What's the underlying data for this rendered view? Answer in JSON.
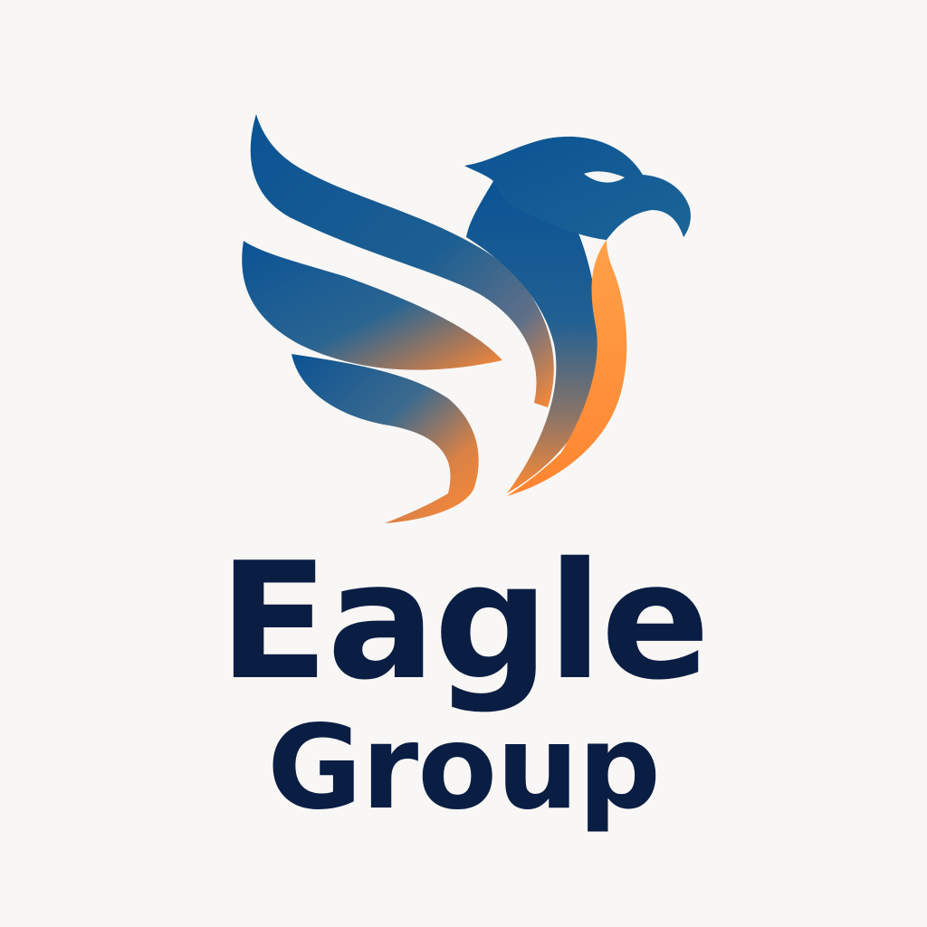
{
  "logo": {
    "name_line1": "Eagle",
    "name_line2": "Group",
    "emblem_icon": "eagle-icon",
    "colors": {
      "background": "#f9f7f5",
      "wordmark": "#0a1e44",
      "emblem_blue": "#0b5394",
      "emblem_blue_mid": "#2e6b96",
      "emblem_orange": "#ff8a33"
    }
  }
}
